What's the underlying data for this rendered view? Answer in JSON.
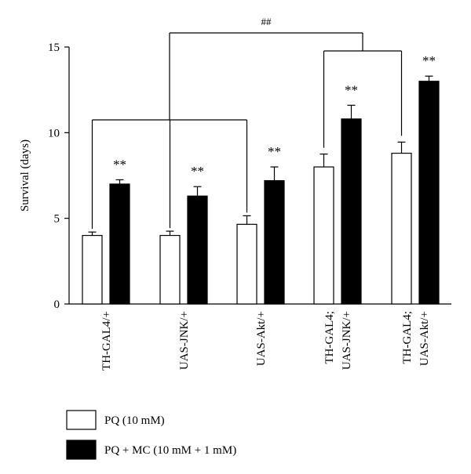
{
  "chart_data": {
    "type": "bar",
    "ylabel": "Survival (days)",
    "ylim": [
      0,
      15
    ],
    "yticks": [
      0,
      5,
      10,
      15
    ],
    "categories": [
      [
        "TH-GAL4/+"
      ],
      [
        "UAS-JNK/+"
      ],
      [
        "UAS-Akt/+"
      ],
      [
        "TH-GAL4;",
        "UAS-JNK/+"
      ],
      [
        "TH-GAL4;",
        "UAS-Akt/+"
      ]
    ],
    "series": [
      {
        "name": "PQ (10 mM)",
        "color": "#ffffff",
        "values": [
          4.0,
          4.0,
          4.65,
          8.0,
          8.8
        ],
        "errors": [
          0.2,
          0.25,
          0.5,
          0.75,
          0.65
        ]
      },
      {
        "name": "PQ + MC (10 mM + 1 mM)",
        "color": "#000000",
        "values": [
          7.0,
          6.3,
          7.2,
          10.8,
          13.0
        ],
        "errors": [
          0.25,
          0.55,
          0.8,
          0.8,
          0.3
        ]
      }
    ],
    "significance_markers": [
      "**",
      "**",
      "**",
      "**",
      "**"
    ],
    "bracket_marker": "##",
    "legend_position": "bottom-left",
    "grid": false
  }
}
